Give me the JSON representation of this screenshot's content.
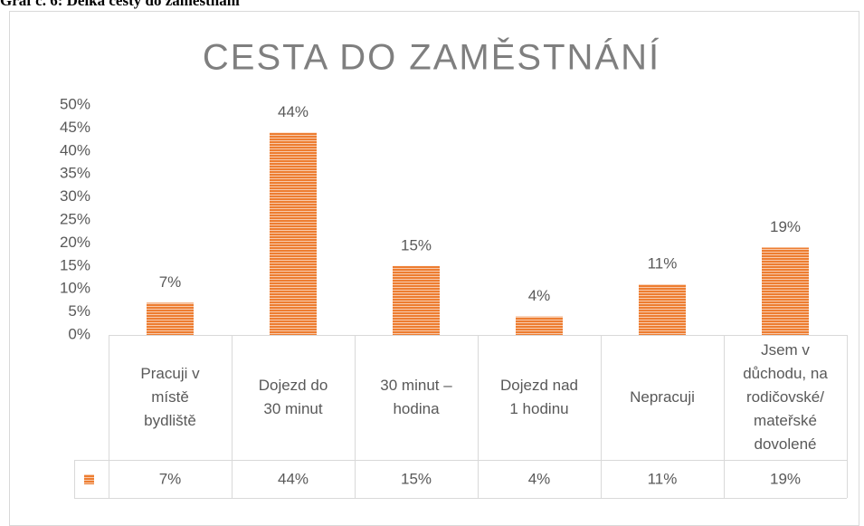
{
  "caption": "Graf č. 6: Délka cesty do zaměstnání",
  "chart_data": {
    "type": "bar",
    "title": "CESTA DO ZAMĚSTNÁNÍ",
    "categories": [
      "Pracuji v\nmístě\nbydliště",
      "Dojezd do\n30 minut",
      "30 minut –\nhodina",
      "Dojezd nad\n1 hodinu",
      "Nepracuji",
      "Jsem v\ndůchodu, na\nrodičovské/\nmateřské\ndovolené"
    ],
    "values": [
      7,
      44,
      15,
      4,
      11,
      19
    ],
    "value_labels": [
      "7%",
      "44%",
      "15%",
      "4%",
      "11%",
      "19%"
    ],
    "color": "#ed7d31",
    "ylim": [
      0,
      50
    ],
    "yticks": [
      {
        "value": 0,
        "label": "0%"
      },
      {
        "value": 5,
        "label": "5%"
      },
      {
        "value": 10,
        "label": "10%"
      },
      {
        "value": 15,
        "label": "15%"
      },
      {
        "value": 20,
        "label": "20%"
      },
      {
        "value": 25,
        "label": "25%"
      },
      {
        "value": 30,
        "label": "30%"
      },
      {
        "value": 35,
        "label": "35%"
      },
      {
        "value": 40,
        "label": "40%"
      },
      {
        "value": 45,
        "label": "45%"
      },
      {
        "value": 50,
        "label": "50%"
      }
    ],
    "grid": false
  }
}
